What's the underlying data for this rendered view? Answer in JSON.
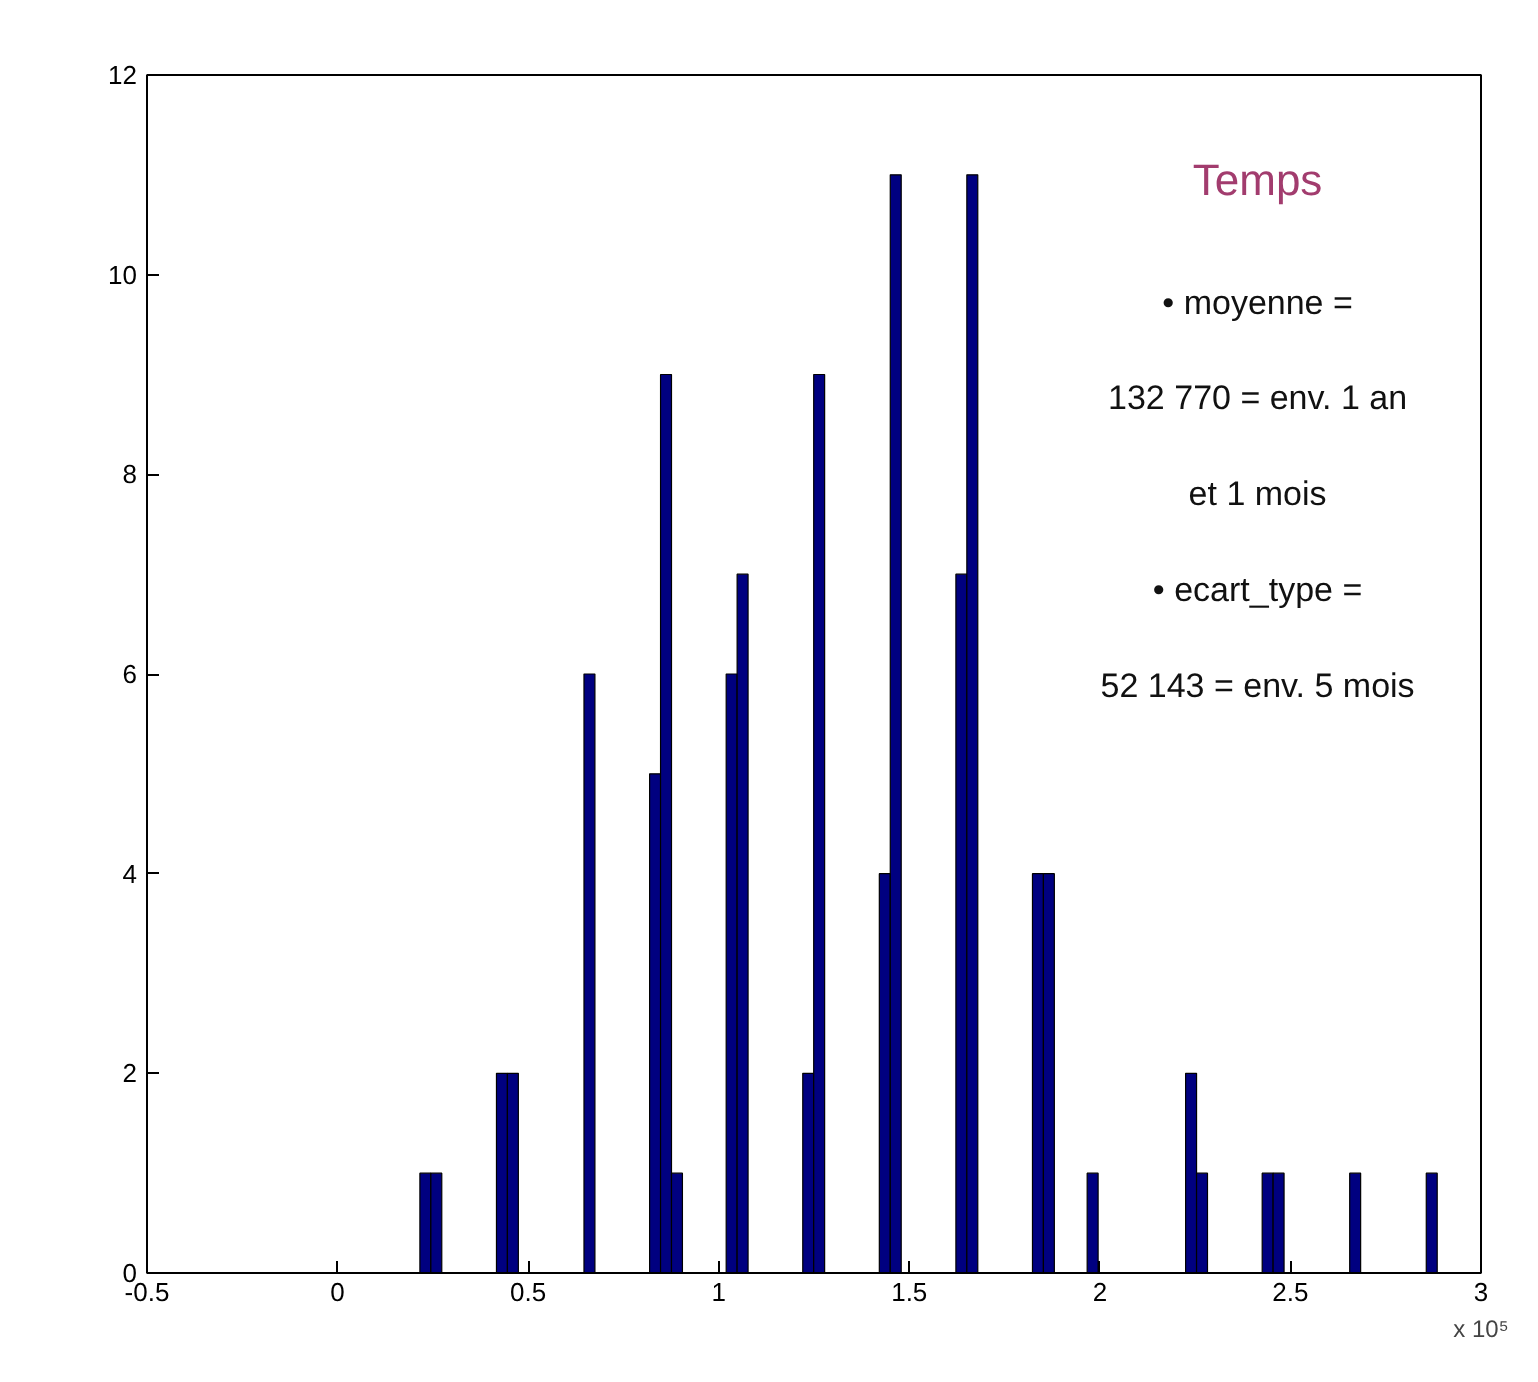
{
  "chart_data": {
    "type": "histogram",
    "xlabel": "x 10⁵",
    "bins": [
      0.216,
      0.2447,
      0.2734,
      0.3021,
      0.3308,
      0.3595,
      0.3882,
      0.4169,
      0.4456,
      0.4743,
      0.503,
      0.5317,
      0.5604,
      0.5891,
      0.6178,
      0.6465,
      0.6752,
      0.7039,
      0.7326,
      0.7613,
      0.79,
      0.8187,
      0.8474,
      0.8761,
      0.9048,
      0.9335,
      0.9622,
      0.9909,
      1.0196,
      1.0483,
      1.077,
      1.1057,
      1.1344,
      1.1631,
      1.1918,
      1.2205,
      1.2492,
      1.2779,
      1.3066,
      1.3353,
      1.364,
      1.3927,
      1.4214,
      1.4501,
      1.4788,
      1.5075,
      1.5362,
      1.5649,
      1.5936,
      1.6223,
      1.651,
      1.6797,
      1.7084,
      1.7371,
      1.7658,
      1.7945,
      1.8232,
      1.8519,
      1.8806,
      1.9093,
      1.938,
      1.9667,
      1.9954,
      2.0241,
      2.0528,
      2.0815,
      2.1102,
      2.1389,
      2.1676,
      2.1963,
      2.225,
      2.2537,
      2.2824,
      2.3111,
      2.3398,
      2.3685,
      2.3972,
      2.4259,
      2.4546,
      2.4833,
      2.512,
      2.5407,
      2.5694,
      2.5981,
      2.6268,
      2.6555,
      2.6842,
      2.7129,
      2.7416,
      2.7703,
      2.799,
      2.8277,
      2.8564,
      2.8851
    ],
    "values": [
      1,
      1,
      0,
      0,
      0,
      0,
      0,
      2,
      2,
      0,
      0,
      0,
      0,
      0,
      0,
      6,
      0,
      0,
      0,
      0,
      0,
      5,
      9,
      1,
      0,
      0,
      0,
      0,
      6,
      7,
      0,
      0,
      0,
      0,
      0,
      2,
      9,
      0,
      0,
      0,
      0,
      0,
      4,
      11,
      0,
      0,
      0,
      0,
      0,
      7,
      11,
      0,
      0,
      0,
      0,
      0,
      4,
      4,
      0,
      0,
      0,
      1,
      0,
      0,
      0,
      0,
      0,
      0,
      0,
      0,
      2,
      1,
      0,
      0,
      0,
      0,
      0,
      1,
      1,
      0,
      0,
      0,
      0,
      0,
      0,
      1,
      0,
      0,
      0,
      0,
      0,
      0,
      1
    ],
    "color": "#000080",
    "xlim": [
      -0.5,
      3
    ],
    "xticks": [
      -0.5,
      0,
      0.5,
      1,
      1.5,
      2,
      2.5,
      3
    ],
    "ylim": [
      0,
      12
    ],
    "yticks": [
      0,
      2,
      4,
      6,
      8,
      10,
      12
    ],
    "grid": false,
    "annotations": [
      "Temps",
      "• moyenne =",
      "132 770 = env. 1 an",
      "et 1 mois",
      "• ecart_type =",
      "52 143 = env. 5 mois"
    ]
  }
}
